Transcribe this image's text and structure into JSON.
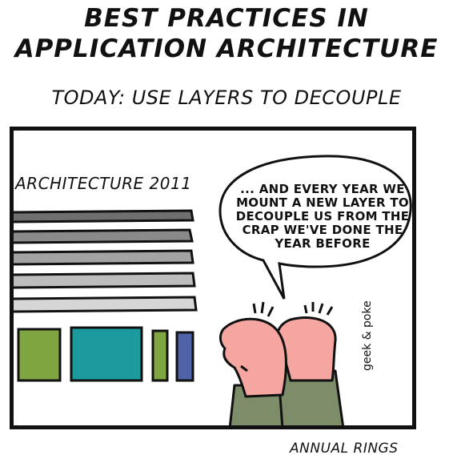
{
  "title": {
    "line1": "BEST PRACTICES IN",
    "line2": "APPLICATION ARCHITECTURE"
  },
  "subtitle": "TODAY: USE LAYERS TO DECOUPLE",
  "panel": {
    "label": "ARCHITECTURE 2011",
    "speech_lines": [
      "... AND EVERY YEAR WE",
      "MOUNT A NEW LAYER TO",
      "DECOUPLE US FROM THE",
      "CRAP WE'VE DONE THE",
      "YEAR BEFORE"
    ],
    "signature": "geek & poke"
  },
  "caption": "ANNUAL RINGS",
  "colors": {
    "layer_1": "#6f6f6f",
    "layer_2": "#8a8a8a",
    "layer_3": "#a3a3a3",
    "layer_4": "#bdbdbd",
    "layer_5": "#d6d6d6",
    "block_green": "#7ea53f",
    "block_teal": "#1d9a9e",
    "block_blue": "#5063a8",
    "skin": "#f5a6a0",
    "shirt": "#7d8d6a"
  }
}
